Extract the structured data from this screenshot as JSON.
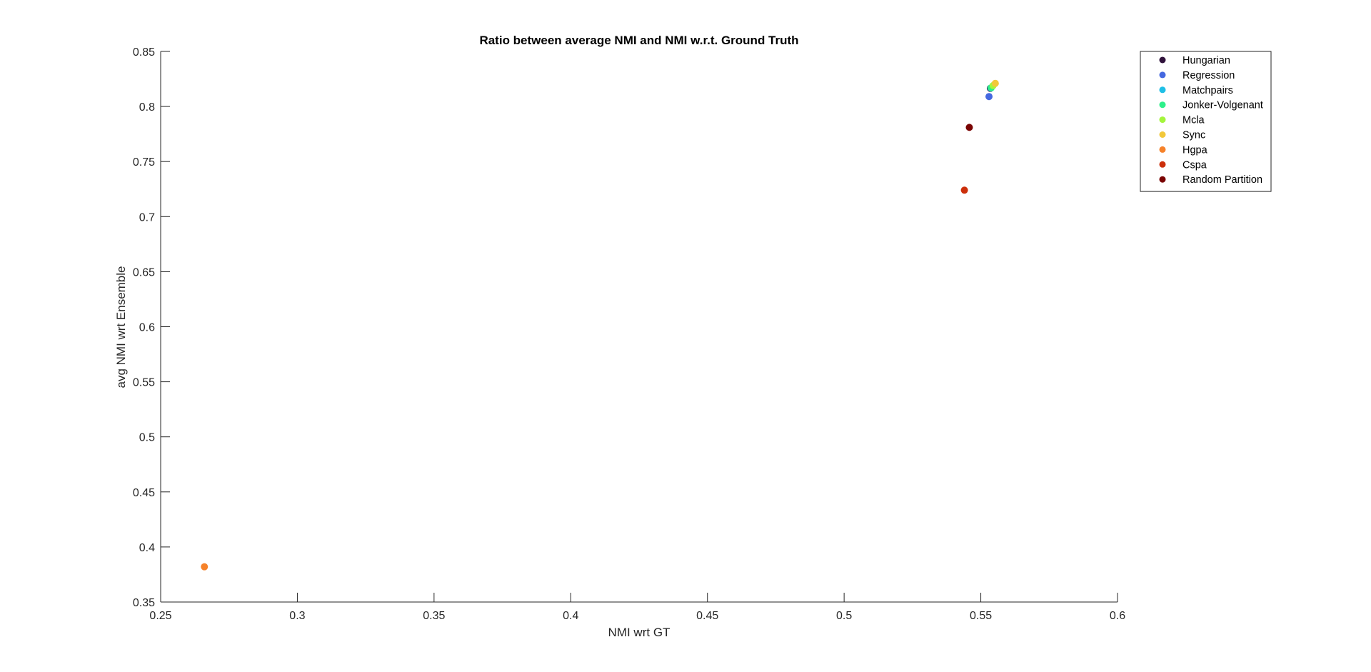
{
  "chart_data": {
    "type": "scatter",
    "title": "Ratio between average NMI and NMI w.r.t. Ground Truth",
    "xlabel": "NMI wrt GT",
    "ylabel": "avg NMI wrt Ensemble",
    "xlim": [
      0.25,
      0.6
    ],
    "ylim": [
      0.35,
      0.85
    ],
    "xticks": [
      0.25,
      0.3,
      0.35,
      0.4,
      0.45,
      0.5,
      0.55,
      0.6
    ],
    "yticks": [
      0.35,
      0.4,
      0.45,
      0.5,
      0.55,
      0.6,
      0.65,
      0.7,
      0.75,
      0.8,
      0.85
    ],
    "xtick_labels": [
      "0.25",
      "0.3",
      "0.35",
      "0.4",
      "0.45",
      "0.5",
      "0.55",
      "0.6"
    ],
    "ytick_labels": [
      "0.35",
      "0.4",
      "0.45",
      "0.5",
      "0.55",
      "0.6",
      "0.65",
      "0.7",
      "0.75",
      "0.8",
      "0.85"
    ],
    "grid": false,
    "legend_position": "top-right",
    "series": [
      {
        "name": "Hungarian",
        "color": "#30123b",
        "x": 0.5535,
        "y": 0.8165
      },
      {
        "name": "Regression",
        "color": "#4568e0",
        "x": 0.553,
        "y": 0.809
      },
      {
        "name": "Matchpairs",
        "color": "#1fbfe6",
        "x": 0.5537,
        "y": 0.8168
      },
      {
        "name": "Jonker-Volgenant",
        "color": "#2df08a",
        "x": 0.5538,
        "y": 0.817
      },
      {
        "name": "Mcla",
        "color": "#a4f53c",
        "x": 0.5545,
        "y": 0.819
      },
      {
        "name": "Sync",
        "color": "#f2c83a",
        "x": 0.5553,
        "y": 0.821
      },
      {
        "name": "Hgpa",
        "color": "#f6822a",
        "x": 0.266,
        "y": 0.382
      },
      {
        "name": "Cspa",
        "color": "#cc2f0b",
        "x": 0.544,
        "y": 0.724
      },
      {
        "name": "Random Partition",
        "color": "#7a0403",
        "x": 0.5458,
        "y": 0.781
      }
    ]
  }
}
